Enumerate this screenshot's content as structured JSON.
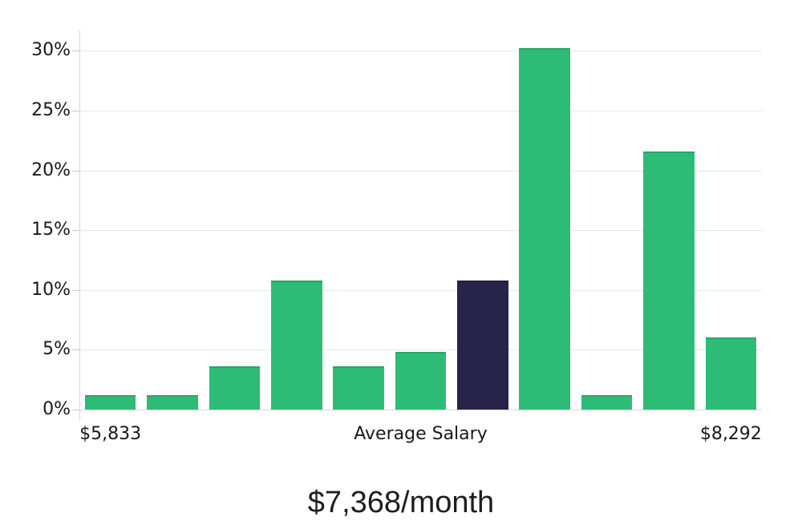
{
  "chart_data": {
    "type": "bar",
    "title": "$7,368/month",
    "xlabel": "",
    "ylabel": "",
    "grid": true,
    "legend": false,
    "ylim": [
      0,
      31.7
    ],
    "y_tick_values": [
      0,
      5,
      10,
      15,
      20,
      25,
      30
    ],
    "y_tick_labels": [
      "0%",
      "5%",
      "10%",
      "15%",
      "20%",
      "25%",
      "30%"
    ],
    "x_tick_labels": [
      {
        "label": "$5,833",
        "position": "under-first-bar"
      },
      {
        "label": "Average Salary",
        "position": "axis-center"
      },
      {
        "label": "$8,292",
        "position": "under-last-bar"
      }
    ],
    "bars": {
      "values_percent": [
        1.2,
        1.2,
        3.6,
        10.8,
        3.6,
        4.8,
        10.8,
        30.2,
        1.2,
        21.6,
        6.0
      ],
      "highlighted_index": 6,
      "highlight_meaning": "Average Salary"
    },
    "colors": {
      "bar": "#2dbc76",
      "bar_edge": "#27a76a",
      "highlight_bar": "#282449",
      "highlight_edge": "#221e3e",
      "grid_line": "#e6e6e6",
      "axis_line": "#d6d6d6",
      "tick_mark": "#c9c9c9",
      "label_text": "#191919"
    }
  }
}
